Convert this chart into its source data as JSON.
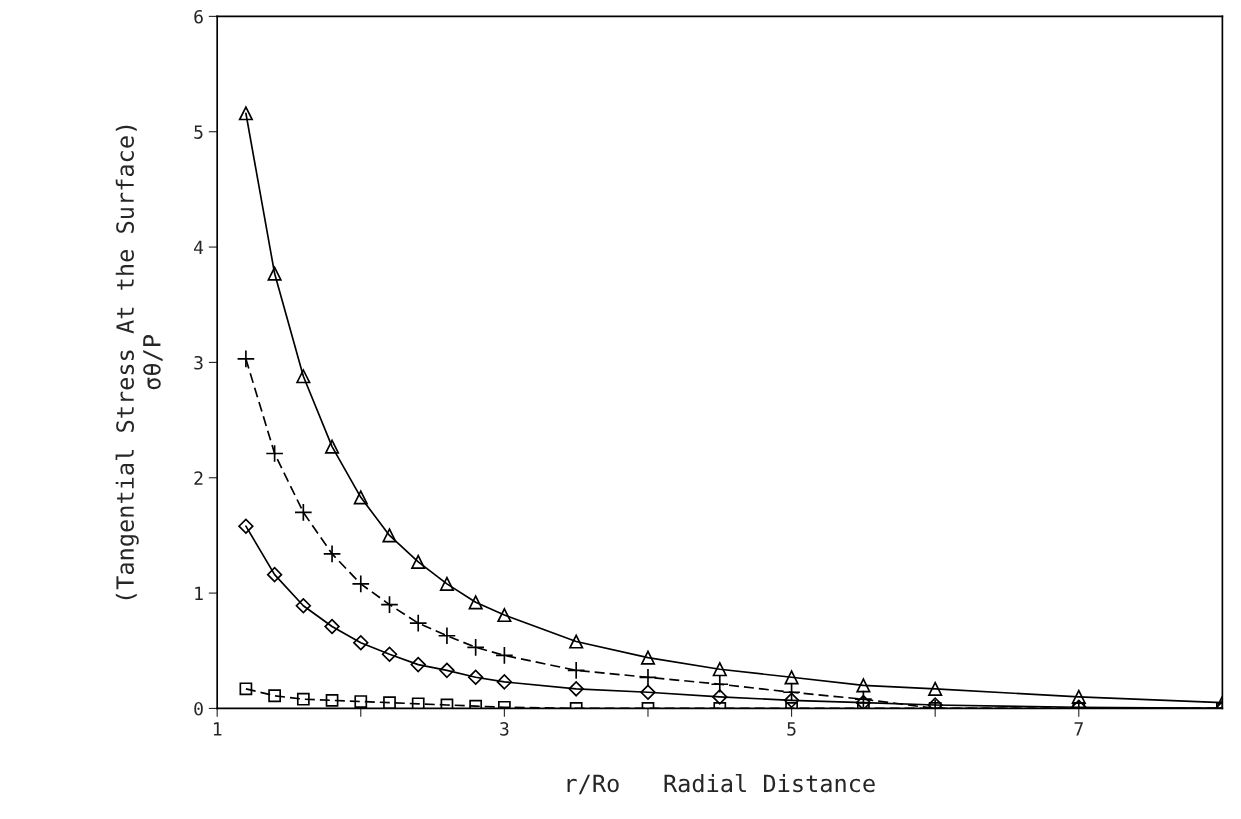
{
  "chart_data": {
    "type": "line",
    "xlabel": "r/Ro   Radial Distance",
    "ylabel": "(Tangential Stress At the Surface)\nσθ/P",
    "x": [
      1.2,
      1.4,
      1.6,
      1.8,
      2.0,
      2.2,
      2.4,
      2.6,
      2.8,
      3.0,
      3.5,
      4.0,
      4.5,
      5.0,
      5.5,
      6.0,
      7.0,
      8.0
    ],
    "series": [
      {
        "color": "#000000",
        "marker": "triangle",
        "line_style": "solid",
        "values": [
          5.16,
          3.77,
          2.88,
          2.27,
          1.83,
          1.5,
          1.27,
          1.08,
          0.92,
          0.81,
          0.58,
          0.44,
          0.34,
          0.27,
          0.2,
          0.17,
          0.1,
          0.05
        ]
      },
      {
        "color": "#000000",
        "marker": "cross",
        "line_style": "dashed",
        "values": [
          3.03,
          2.21,
          1.7,
          1.34,
          1.08,
          0.9,
          0.74,
          0.63,
          0.53,
          0.46,
          0.33,
          0.27,
          0.21,
          0.14,
          0.08,
          0.0,
          0.0,
          0.0
        ]
      },
      {
        "color": "#000000",
        "marker": "diamond",
        "line_style": "solid",
        "values": [
          1.58,
          1.16,
          0.89,
          0.71,
          0.57,
          0.47,
          0.38,
          0.33,
          0.27,
          0.23,
          0.17,
          0.14,
          0.1,
          0.07,
          0.05,
          0.03,
          0.01,
          0.0
        ]
      },
      {
        "color": "#000000",
        "marker": "square",
        "line_style": "dashed",
        "values": [
          0.17,
          0.11,
          0.08,
          0.07,
          0.06,
          0.05,
          0.04,
          0.03,
          0.02,
          0.01,
          0.0,
          0.0,
          0.0,
          0.0,
          0.0,
          0.0,
          0.0,
          0.0
        ]
      }
    ],
    "xlim": [
      1,
      8
    ],
    "ylim": [
      0,
      6
    ],
    "xticks": [
      1,
      {
        "value": 2,
        "label": null
      },
      3,
      {
        "value": 4,
        "label": null
      },
      5,
      {
        "value": 6,
        "label": null
      },
      7
    ],
    "yticks": [
      0,
      1,
      2,
      3,
      4,
      5,
      6
    ],
    "grid": false,
    "legend": false
  }
}
